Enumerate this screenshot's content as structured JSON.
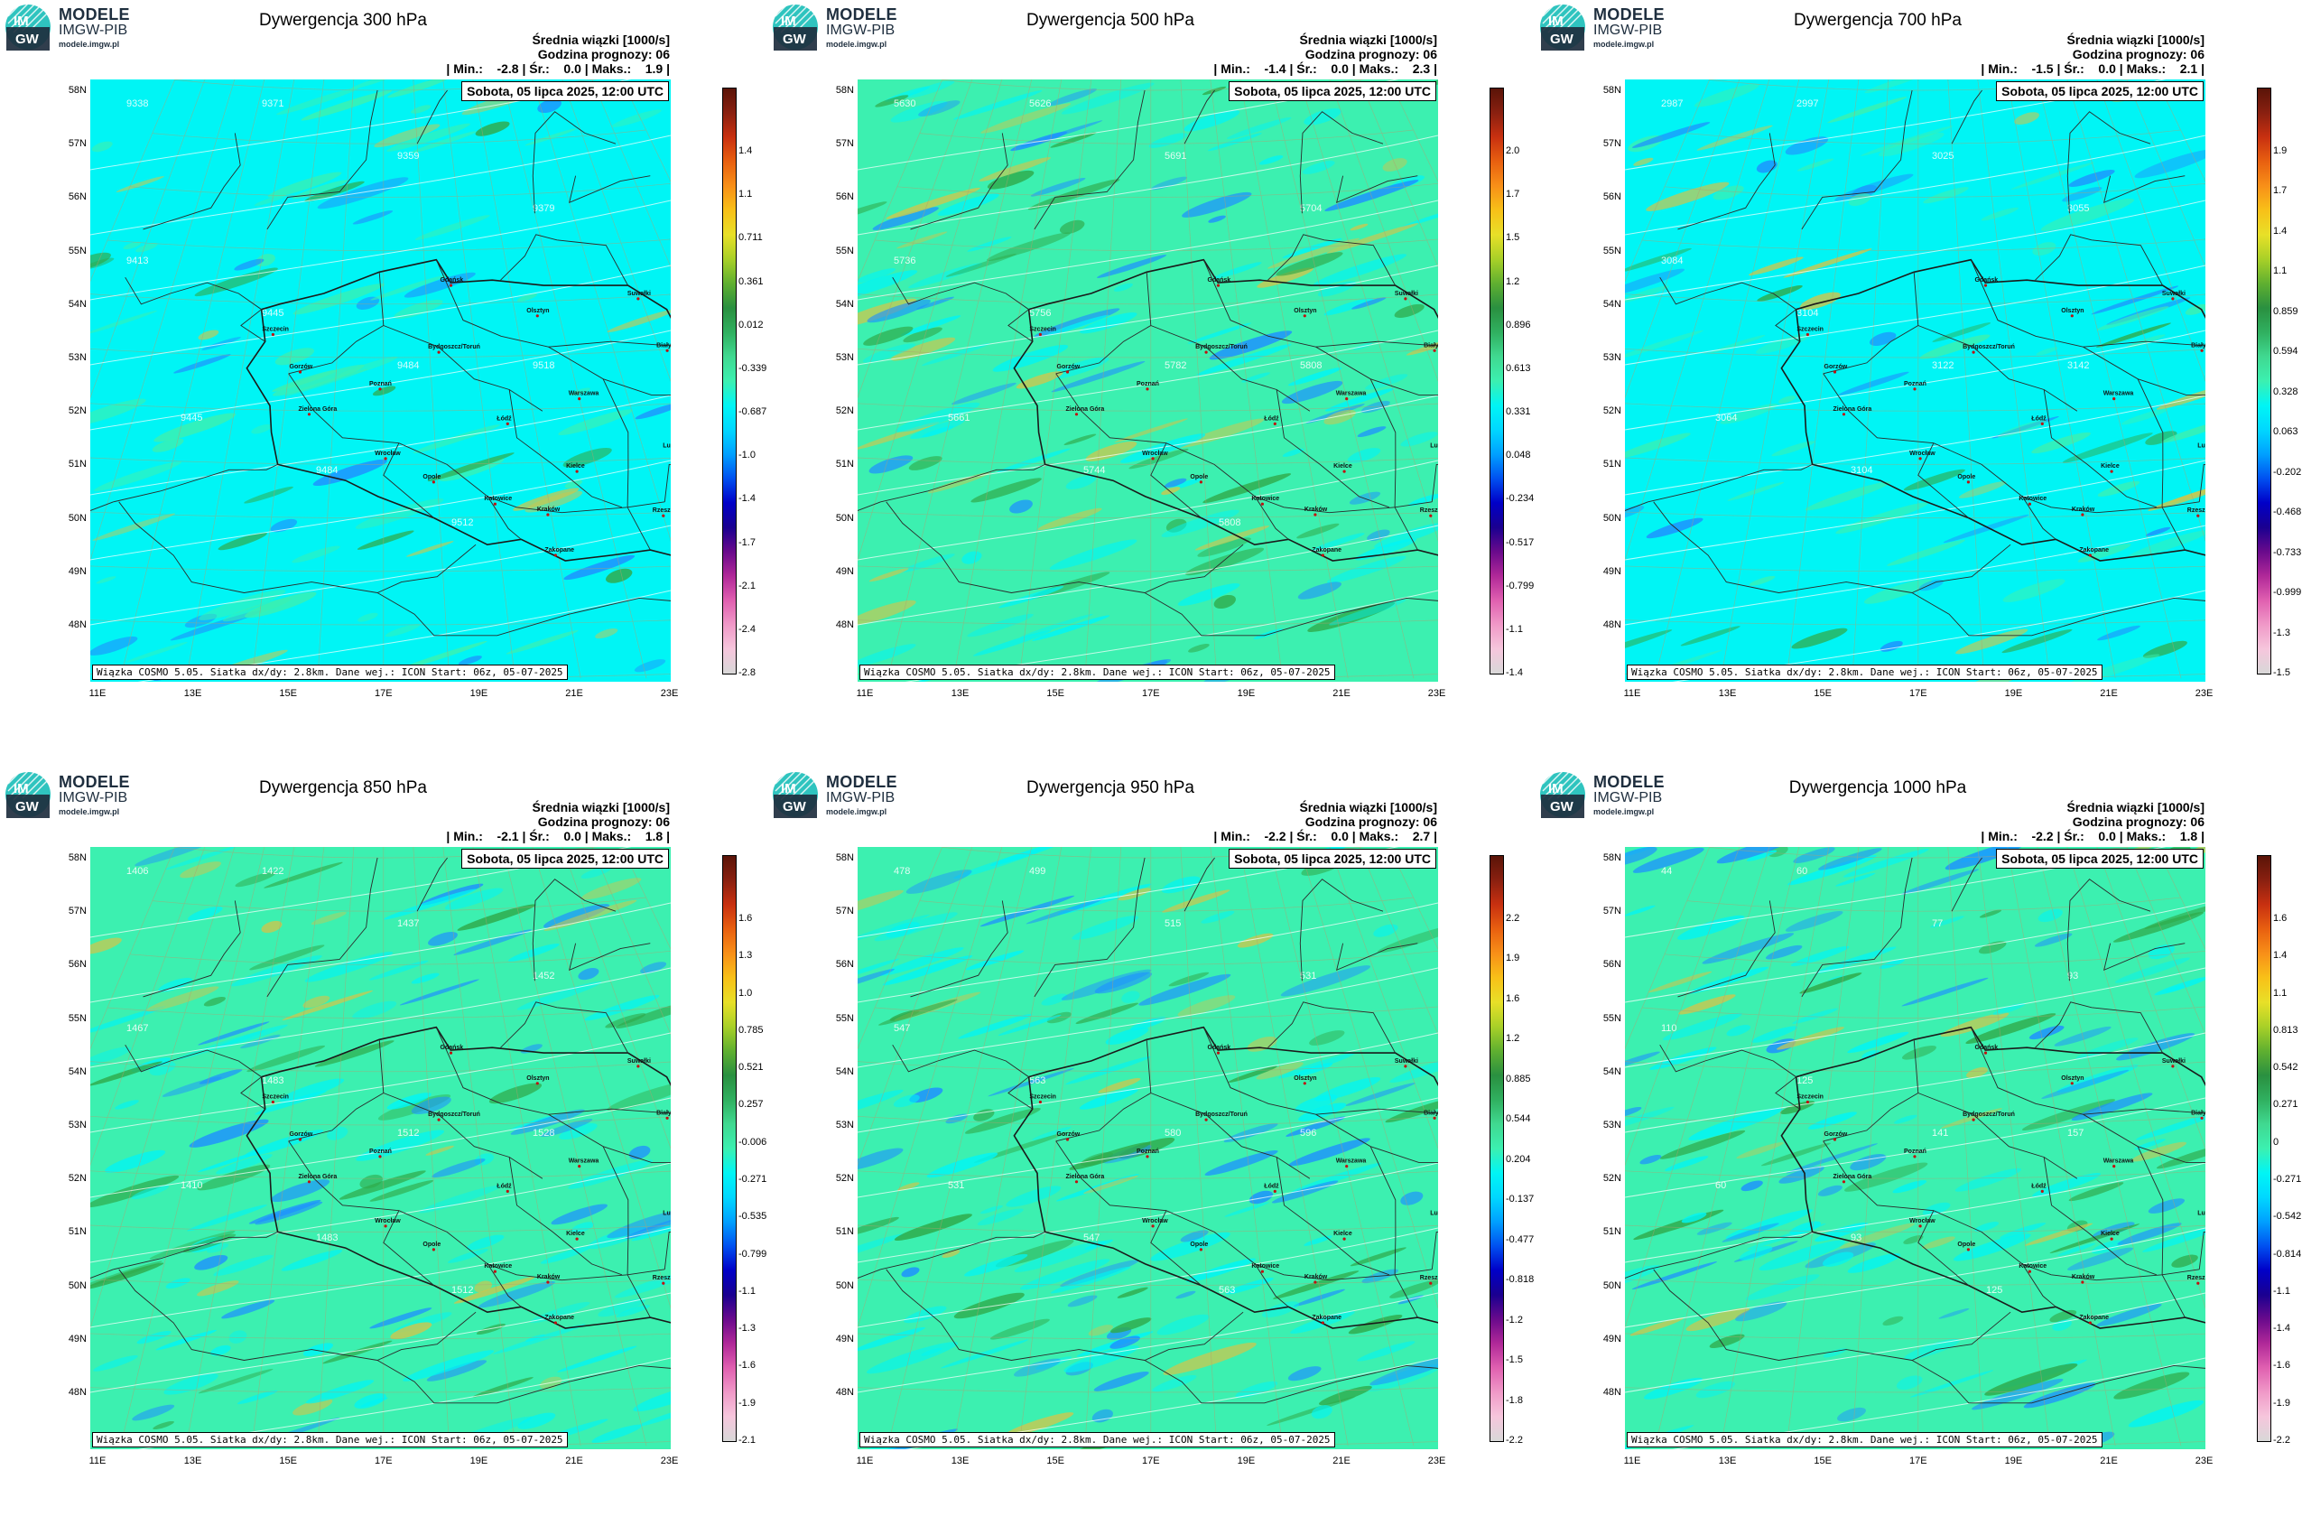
{
  "logo": {
    "line1": "MODELE",
    "line2": "IMGW-PIB",
    "line3": "modele.imgw.pl",
    "mark_text_top": "IM",
    "mark_text_bottom": "GW"
  },
  "common": {
    "subtitle_line1": "Średnia wiązki [1000/s]",
    "subtitle_line2": "Godzina prognozy: 06",
    "min_label": "| Min.:",
    "mean_label": "| Śr.:",
    "max_label": "| Maks.:",
    "end_bar": "|",
    "date": "Sobota, 05 lipca 2025, 12:00 UTC",
    "footer": "Wiązka COSMO 5.05. Siatka dx/dy: 2.8km. Dane wej.: ICON Start: 06z, 05-07-2025",
    "lat_labels": [
      "58N",
      "57N",
      "56N",
      "55N",
      "54N",
      "53N",
      "52N",
      "51N",
      "50N",
      "49N",
      "48N"
    ],
    "lon_labels": [
      "11E",
      "13E",
      "15E",
      "17E",
      "19E",
      "21E",
      "23E"
    ],
    "cities": [
      "Gdańsk",
      "Olsztyn",
      "Szczecin",
      "Bydgoszcz/Toruń",
      "Białystok",
      "Gorzów",
      "Poznań",
      "Warszawa",
      "Zielona Góra",
      "Łódź",
      "Lublin",
      "Wrocław",
      "Kielce",
      "Opole",
      "Katowice",
      "Kraków",
      "Rzeszów",
      "Zakopane",
      "Suwałki"
    ]
  },
  "colors": {
    "cyan_field": "#00f5f5",
    "green_field": "#3cf0b0",
    "streak_blue": "#1e90ff",
    "streak_green": "#2faa4a",
    "streak_yellow": "#c8c850",
    "colorbar": [
      "#d8d8d8",
      "#f6c6dc",
      "#f09ac8",
      "#e060b0",
      "#b02898",
      "#6a0a8c",
      "#1a0090",
      "#0000c8",
      "#0050f0",
      "#00a0ff",
      "#00d8ff",
      "#00f5f5",
      "#3cf0b0",
      "#40d890",
      "#30b060",
      "#2a9040",
      "#60b030",
      "#a8d028",
      "#e8e028",
      "#f8c018",
      "#f89018",
      "#e86010",
      "#c83010",
      "#8a2010",
      "#5a1408"
    ]
  },
  "panels": [
    {
      "id": "300",
      "title": "Dywergencja 300 hPa",
      "min": "-2.8",
      "mean": "0.0",
      "max": "1.9",
      "bg": "cyan",
      "cbar_ticks": [
        "1.4",
        "1.1",
        "0.711",
        "0.361",
        "0.012",
        "-0.339",
        "-0.687",
        "-1.0",
        "-1.4",
        "-1.7",
        "-2.1",
        "-2.4",
        "-2.8"
      ],
      "contours": [
        "9338",
        "9371",
        "9359",
        "9379",
        "9413",
        "9445",
        "9484",
        "9518",
        "9445",
        "9484",
        "9512"
      ]
    },
    {
      "id": "500",
      "title": "Dywergencja 500 hPa",
      "min": "-1.4",
      "mean": "0.0",
      "max": "2.3",
      "bg": "green",
      "cbar_ticks": [
        "2.0",
        "1.7",
        "1.5",
        "1.2",
        "0.896",
        "0.613",
        "0.331",
        "0.048",
        "-0.234",
        "-0.517",
        "-0.799",
        "-1.1",
        "-1.4"
      ],
      "contours": [
        "5630",
        "5626",
        "5691",
        "5704",
        "5736",
        "5756",
        "5782",
        "5808",
        "5661",
        "5744",
        "5808"
      ]
    },
    {
      "id": "700",
      "title": "Dywergencja 700 hPa",
      "min": "-1.5",
      "mean": "0.0",
      "max": "2.1",
      "bg": "cyan",
      "cbar_ticks": [
        "1.9",
        "1.7",
        "1.4",
        "1.1",
        "0.859",
        "0.594",
        "0.328",
        "0.063",
        "-0.202",
        "-0.468",
        "-0.733",
        "-0.999",
        "-1.3",
        "-1.5"
      ],
      "contours": [
        "2987",
        "2997",
        "3025",
        "3055",
        "3084",
        "3104",
        "3122",
        "3142",
        "3064",
        "3104"
      ]
    },
    {
      "id": "850",
      "title": "Dywergencja 850 hPa",
      "min": "-2.1",
      "mean": "0.0",
      "max": "1.8",
      "bg": "green",
      "cbar_ticks": [
        "1.6",
        "1.3",
        "1.0",
        "0.785",
        "0.521",
        "0.257",
        "-0.006",
        "-0.271",
        "-0.535",
        "-0.799",
        "-1.1",
        "-1.3",
        "-1.6",
        "-1.9",
        "-2.1"
      ],
      "contours": [
        "1406",
        "1422",
        "1437",
        "1452",
        "1467",
        "1483",
        "1512",
        "1528",
        "1410",
        "1483",
        "1512"
      ]
    },
    {
      "id": "950",
      "title": "Dywergencja 950 hPa",
      "min": "-2.2",
      "mean": "0.0",
      "max": "2.7",
      "bg": "green",
      "cbar_ticks": [
        "2.2",
        "1.9",
        "1.6",
        "1.2",
        "0.885",
        "0.544",
        "0.204",
        "-0.137",
        "-0.477",
        "-0.818",
        "-1.2",
        "-1.5",
        "-1.8",
        "-2.2"
      ],
      "contours": [
        "478",
        "499",
        "515",
        "531",
        "547",
        "563",
        "580",
        "596",
        "531",
        "547",
        "563"
      ]
    },
    {
      "id": "1000",
      "title": "Dywergencja 1000 hPa",
      "min": "-2.2",
      "mean": "0.0",
      "max": "1.8",
      "bg": "green",
      "cbar_ticks": [
        "1.6",
        "1.4",
        "1.1",
        "0.813",
        "0.542",
        "0.271",
        "0",
        "-0.271",
        "-0.542",
        "-0.814",
        "-1.1",
        "-1.4",
        "-1.6",
        "-1.9",
        "-2.2"
      ],
      "contours": [
        "44",
        "60",
        "77",
        "93",
        "110",
        "125",
        "141",
        "157",
        "60",
        "93",
        "125"
      ]
    }
  ]
}
